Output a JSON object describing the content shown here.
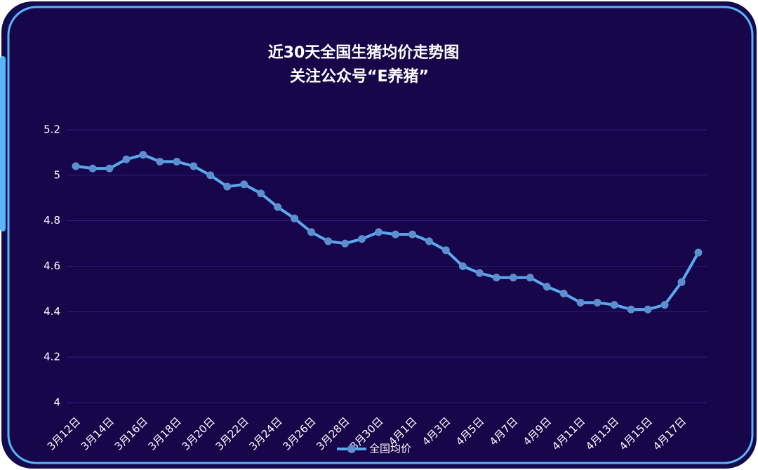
{
  "chart_data": {
    "type": "line",
    "title": "近30天全国生猪均价走势图",
    "subtitle": "关注公众号“E养猪”",
    "categories": [
      "3月12日",
      null,
      "3月14日",
      null,
      "3月16日",
      null,
      "3月18日",
      null,
      "3月20日",
      null,
      "3月22日",
      null,
      "3月24日",
      null,
      "3月26日",
      null,
      "3月28日",
      null,
      "3月30日",
      null,
      "4月1日",
      null,
      "4月3日",
      null,
      "4月5日",
      null,
      "4月7日",
      null,
      "4月9日",
      null,
      "4月11日",
      null,
      "4月13日",
      null,
      "4月15日",
      null,
      "4月17日",
      null
    ],
    "series": [
      {
        "name": "全国均价",
        "color": "#5aa9f0",
        "values": [
          5.04,
          5.03,
          5.03,
          5.07,
          5.09,
          5.06,
          5.06,
          5.04,
          5.0,
          4.95,
          4.96,
          4.92,
          4.86,
          4.81,
          4.75,
          4.71,
          4.7,
          4.72,
          4.75,
          4.74,
          4.74,
          4.71,
          4.67,
          4.6,
          4.57,
          4.55,
          4.55,
          4.55,
          4.51,
          4.48,
          4.44,
          4.44,
          4.43,
          4.41,
          4.41,
          4.43,
          4.53,
          4.66
        ]
      }
    ],
    "ylim": [
      4,
      5.2
    ],
    "yticks": [
      4,
      4.2,
      4.4,
      4.6,
      4.8,
      5,
      5.2
    ],
    "grid": true
  }
}
